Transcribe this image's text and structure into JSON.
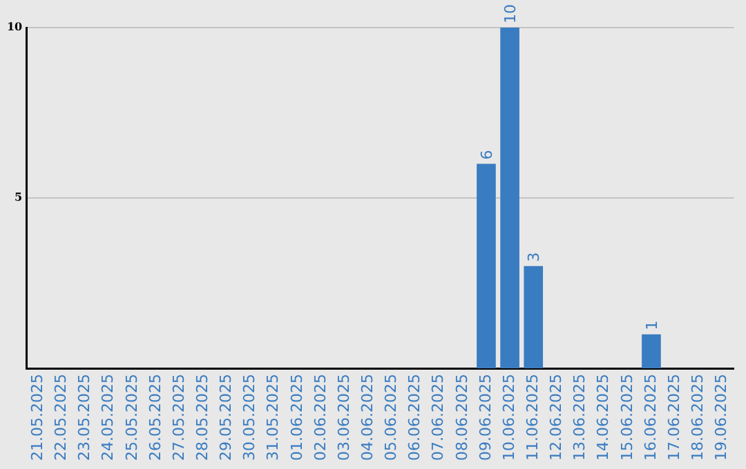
{
  "chart_data": {
    "type": "bar",
    "categories": [
      "21.05.2025",
      "22.05.2025",
      "23.05.2025",
      "24.05.2025",
      "25.05.2025",
      "26.05.2025",
      "27.05.2025",
      "28.05.2025",
      "29.05.2025",
      "30.05.2025",
      "31.05.2025",
      "01.06.2025",
      "02.06.2025",
      "03.06.2025",
      "04.06.2025",
      "05.06.2025",
      "06.06.2025",
      "07.06.2025",
      "08.06.2025",
      "09.06.2025",
      "10.06.2025",
      "11.06.2025",
      "12.06.2025",
      "13.06.2025",
      "14.06.2025",
      "15.06.2025",
      "16.06.2025",
      "17.06.2025",
      "18.06.2025",
      "19.06.2025"
    ],
    "values": [
      0,
      0,
      0,
      0,
      0,
      0,
      0,
      0,
      0,
      0,
      0,
      0,
      0,
      0,
      0,
      0,
      0,
      0,
      0,
      6,
      10,
      3,
      0,
      0,
      0,
      0,
      1,
      0,
      0,
      0
    ],
    "value_labels": [
      null,
      null,
      null,
      null,
      null,
      null,
      null,
      null,
      null,
      null,
      null,
      null,
      null,
      null,
      null,
      null,
      null,
      null,
      null,
      "6",
      "10",
      "3",
      null,
      null,
      null,
      null,
      "1",
      null,
      null,
      null
    ],
    "color": "#3a7cc1",
    "ylim": [
      0,
      10
    ],
    "yticks": [
      5,
      10
    ],
    "grid": "y",
    "legend": false
  }
}
